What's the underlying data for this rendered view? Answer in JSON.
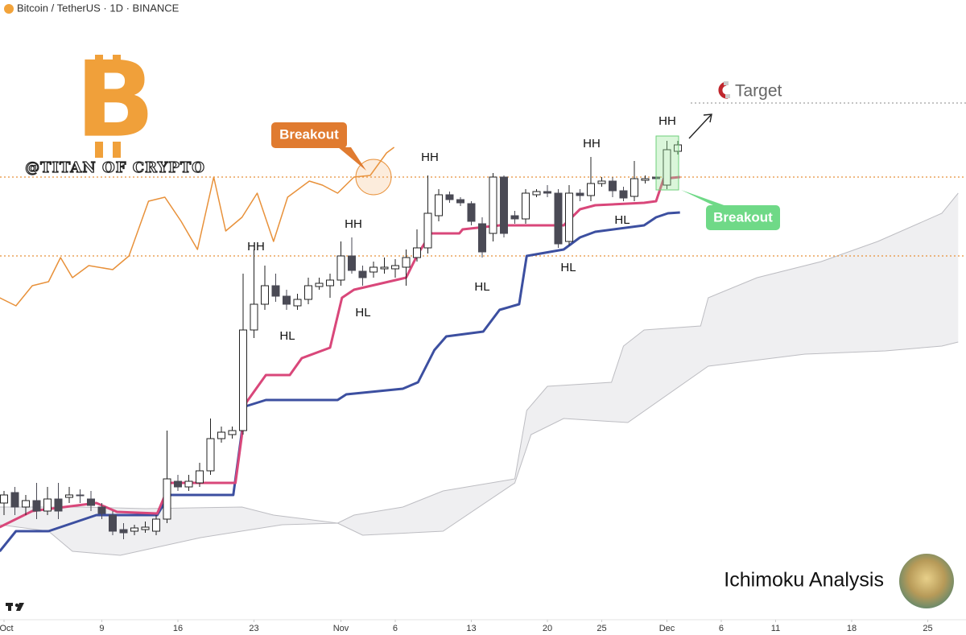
{
  "chart_data": {
    "type": "candlestick",
    "title": "Bitcoin / TetherUS · 1D · BINANCE",
    "logo": "B",
    "watermark": "@TITAN OF CRYPTO",
    "footer": "Ichimoku Analysis",
    "annotations": {
      "breakout": "Breakout",
      "target": "Target",
      "hh": "HH",
      "hl": "HL"
    },
    "xlim": [
      -0.37,
      88.52
    ],
    "ylim": [
      30,
      800
    ],
    "xticks": [
      {
        "value": 0,
        "label": "Oct"
      },
      9,
      16,
      23,
      {
        "value": 31,
        "label": "Nov"
      },
      {
        "value": 36,
        "label": "6"
      },
      {
        "value": 43,
        "label": "13"
      },
      {
        "value": 50,
        "label": "20"
      },
      {
        "value": 55,
        "label": "25"
      },
      {
        "value": 61,
        "label": "Dec"
      },
      {
        "value": 66,
        "label": "6"
      },
      {
        "value": 71,
        "label": "11"
      },
      {
        "value": 78,
        "label": "18"
      },
      {
        "value": 85,
        "label": "25"
      }
    ],
    "levels": [
      580,
      482
    ],
    "target_level": 672,
    "series": [
      {
        "type": "area-band",
        "color": "#e9e9ec",
        "x": [
          -0.4,
          7,
          13,
          21.9,
          24.8,
          30.7,
          32.2,
          36.7,
          40.4,
          47,
          48.1,
          50,
          55.9,
          57,
          58.9,
          64.1,
          64.8,
          69.3,
          75.2,
          80.4,
          86.3,
          87.8
        ],
        "values": [
          170,
          170,
          168,
          170,
          160,
          150,
          160,
          170,
          190,
          205,
          290,
          320,
          325,
          370,
          390,
          395,
          430,
          455,
          475,
          500,
          535,
          560
        ]
      },
      {
        "type": "area-band",
        "color": "#e9e9ec",
        "x": [
          -0.4,
          4.1,
          6.3,
          10.7,
          18.1,
          25.6,
          30.7,
          33,
          40.4,
          47,
          48.5,
          51.5,
          57.4,
          64.8,
          73.7,
          81.1,
          86.3,
          87.8
        ],
        "values": [
          148,
          140,
          115,
          110,
          132,
          148,
          150,
          135,
          140,
          200,
          260,
          280,
          275,
          345,
          360,
          364,
          370,
          375
        ]
      },
      {
        "type": "line",
        "color": "#e8913a",
        "x": [
          -0.4,
          1.1,
          2.6,
          4.1,
          5.2,
          6.3,
          7.8,
          10,
          11.5,
          13.3,
          14.8,
          16.3,
          17.8,
          19.3,
          20.4,
          21.9,
          23.3,
          24.8,
          26.1,
          28.1,
          29.3,
          30.7,
          32.2,
          33.7,
          35.2,
          35.9
        ],
        "values": [
          430,
          420,
          445,
          450,
          480,
          455,
          470,
          465,
          482,
          550,
          555,
          525,
          490,
          580,
          513,
          530,
          560,
          500,
          555,
          575,
          570,
          560,
          580,
          582,
          610,
          617
        ]
      },
      {
        "type": "line",
        "color": "#3c4fa0",
        "x": [
          -0.4,
          1.1,
          4.1,
          8.5,
          14.1,
          15.2,
          21.1,
          22.2,
          24.1,
          30.7,
          31.5,
          36.7,
          38.1,
          39.6,
          40.7,
          44.1,
          45.6,
          47.4,
          48.1,
          51.5,
          53,
          54.4,
          58.9,
          60,
          61.1,
          62.2
        ],
        "values": [
          115,
          140,
          140,
          160,
          160,
          185,
          185,
          295,
          303,
          303,
          310,
          317,
          325,
          365,
          382,
          388,
          415,
          422,
          482,
          490,
          505,
          512,
          520,
          530,
          535,
          536
        ]
      },
      {
        "type": "line",
        "color": "#d9477a",
        "x": [
          -0.4,
          2.6,
          8.5,
          10.4,
          14.1,
          15.3,
          21.3,
          22.3,
          24.1,
          26.3,
          27.4,
          30,
          31.1,
          32.2,
          37,
          38.1,
          39.3,
          41.9,
          42.2,
          45.6,
          51.5,
          53,
          54.4,
          58.9,
          60,
          60.7,
          62.2
        ],
        "values": [
          145,
          165,
          175,
          164,
          162,
          200,
          200,
          300,
          334,
          334,
          355,
          368,
          430,
          440,
          455,
          485,
          510,
          510,
          515,
          520,
          520,
          540,
          545,
          548,
          550,
          578,
          580
        ]
      },
      {
        "type": "candlestick",
        "up_color": "#ffffff",
        "down_color": "#4a4a55",
        "x": [
          0,
          1,
          2,
          3,
          4,
          5,
          6,
          7,
          8,
          9,
          10,
          11,
          12,
          13,
          14,
          15,
          16,
          17,
          18,
          19,
          20,
          21,
          22,
          23,
          24,
          25,
          26,
          27,
          28,
          29,
          30,
          31,
          32,
          33,
          34,
          35,
          36,
          37,
          38,
          39,
          40,
          41,
          42,
          43,
          44,
          45,
          46,
          47,
          48,
          49,
          50,
          51,
          52,
          53,
          54,
          55,
          56,
          57,
          58,
          59,
          60,
          61,
          62
        ],
        "open": [
          175,
          188,
          170,
          178,
          165,
          180,
          182,
          185,
          180,
          170,
          160,
          142,
          140,
          142,
          140,
          155,
          202,
          195,
          200,
          215,
          255,
          260,
          265,
          390,
          422,
          445,
          432,
          420,
          428,
          444,
          445,
          452,
          482,
          463,
          462,
          466,
          466,
          468,
          480,
          492,
          532,
          558,
          552,
          547,
          522,
          510,
          580,
          532,
          528,
          558,
          562,
          560,
          500,
          560,
          557,
          572,
          575,
          563,
          556,
          576,
          580,
          570,
          612
        ],
        "high": [
          190,
          195,
          185,
          200,
          195,
          200,
          195,
          192,
          190,
          175,
          165,
          150,
          148,
          152,
          160,
          265,
          210,
          210,
          225,
          280,
          270,
          270,
          460,
          490,
          470,
          460,
          440,
          435,
          455,
          455,
          460,
          500,
          505,
          470,
          475,
          480,
          478,
          490,
          515,
          582,
          565,
          562,
          555,
          550,
          530,
          585,
          582,
          538,
          565,
          565,
          570,
          565,
          570,
          565,
          605,
          580,
          580,
          568,
          600,
          582,
          585,
          625,
          625
        ],
        "low": [
          160,
          160,
          160,
          155,
          160,
          155,
          175,
          175,
          165,
          155,
          135,
          130,
          135,
          138,
          135,
          150,
          190,
          190,
          195,
          210,
          250,
          255,
          260,
          380,
          415,
          425,
          415,
          415,
          422,
          440,
          430,
          445,
          460,
          445,
          455,
          460,
          455,
          445,
          475,
          485,
          525,
          548,
          544,
          520,
          480,
          500,
          505,
          522,
          522,
          555,
          555,
          492,
          495,
          550,
          550,
          568,
          555,
          550,
          550,
          572,
          575,
          565,
          608
        ],
        "close": [
          185,
          170,
          178,
          165,
          180,
          165,
          185,
          184,
          172,
          162,
          140,
          138,
          144,
          145,
          155,
          205,
          195,
          202,
          215,
          255,
          263,
          265,
          390,
          422,
          445,
          432,
          422,
          428,
          445,
          448,
          452,
          482,
          464,
          455,
          468,
          468,
          470,
          480,
          492,
          535,
          558,
          552,
          548,
          525,
          487,
          580,
          510,
          528,
          560,
          562,
          560,
          497,
          560,
          557,
          572,
          575,
          563,
          554,
          578,
          578,
          578,
          614,
          620
        ]
      }
    ]
  }
}
